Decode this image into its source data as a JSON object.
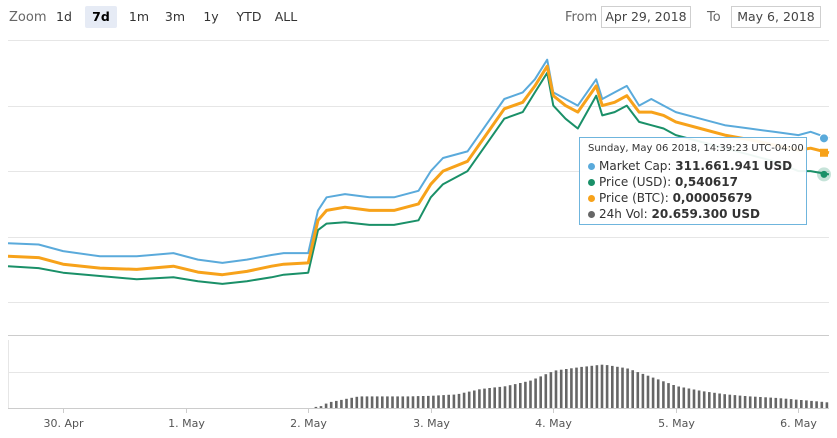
{
  "toolbar": {
    "zoom_label": "Zoom",
    "zoom_buttons": [
      "1d",
      "7d",
      "1m",
      "3m",
      "1y",
      "YTD",
      "ALL"
    ],
    "active_zoom": "7d",
    "from_label": "From",
    "from_value": "Apr 29, 2018",
    "to_label": "To",
    "to_value": "May 6, 2018"
  },
  "tooltip": {
    "header": "Sunday, May 06 2018, 14:39:23 UTC-04:00",
    "rows": [
      {
        "label": "Market Cap:",
        "value": "311.661.941 USD",
        "color": "#5aaadb"
      },
      {
        "label": "Price (USD):",
        "value": "0,540617",
        "color": "#1a9068"
      },
      {
        "label": "Price (BTC):",
        "value": "0,00005679",
        "color": "#f7a21a"
      },
      {
        "label": "24h Vol:",
        "value": "20.659.300 USD",
        "color": "#666666"
      }
    ]
  },
  "chart_data": {
    "type": "line",
    "x_axis": {
      "tick_labels": [
        "30. Apr",
        "1. May",
        "2. May",
        "3. May",
        "4. May",
        "5. May",
        "6. May"
      ],
      "range_days": [
        29.55,
        36.25
      ]
    },
    "grid": true,
    "series": [
      {
        "name": "Market Cap",
        "color": "#5aaadb",
        "unit": "USD",
        "x": [
          29.55,
          29.8,
          30.0,
          30.3,
          30.6,
          30.9,
          31.1,
          31.3,
          31.5,
          31.7,
          31.8,
          32.0,
          32.08,
          32.15,
          32.3,
          32.5,
          32.7,
          32.9,
          33.0,
          33.1,
          33.3,
          33.45,
          33.6,
          33.75,
          33.85,
          33.95,
          34.0,
          34.1,
          34.2,
          34.35,
          34.4,
          34.5,
          34.6,
          34.7,
          34.8,
          34.9,
          35.0,
          35.2,
          35.4,
          35.6,
          35.8,
          36.0,
          36.1,
          36.25
        ],
        "y": [
          0.49,
          0.488,
          0.478,
          0.47,
          0.47,
          0.475,
          0.465,
          0.46,
          0.465,
          0.472,
          0.475,
          0.475,
          0.54,
          0.56,
          0.565,
          0.56,
          0.56,
          0.57,
          0.6,
          0.62,
          0.63,
          0.67,
          0.71,
          0.72,
          0.74,
          0.77,
          0.72,
          0.71,
          0.7,
          0.74,
          0.71,
          0.72,
          0.73,
          0.7,
          0.71,
          0.7,
          0.69,
          0.68,
          0.67,
          0.665,
          0.66,
          0.655,
          0.66,
          0.65
        ]
      },
      {
        "name": "Price (USD)",
        "color": "#1a9068",
        "unit": "USD",
        "x": [
          29.55,
          29.8,
          30.0,
          30.3,
          30.6,
          30.9,
          31.1,
          31.3,
          31.5,
          31.7,
          31.8,
          32.0,
          32.08,
          32.15,
          32.3,
          32.5,
          32.7,
          32.9,
          33.0,
          33.1,
          33.3,
          33.45,
          33.6,
          33.75,
          33.85,
          33.95,
          34.0,
          34.1,
          34.2,
          34.35,
          34.4,
          34.5,
          34.6,
          34.7,
          34.8,
          34.9,
          35.0,
          35.2,
          35.4,
          35.6,
          35.8,
          36.0,
          36.1,
          36.25
        ],
        "y": [
          0.455,
          0.452,
          0.445,
          0.44,
          0.435,
          0.438,
          0.432,
          0.428,
          0.432,
          0.438,
          0.442,
          0.445,
          0.51,
          0.52,
          0.522,
          0.518,
          0.518,
          0.525,
          0.56,
          0.58,
          0.6,
          0.64,
          0.68,
          0.69,
          0.72,
          0.75,
          0.7,
          0.68,
          0.665,
          0.715,
          0.685,
          0.69,
          0.7,
          0.675,
          0.67,
          0.665,
          0.655,
          0.645,
          0.635,
          0.625,
          0.615,
          0.6,
          0.6,
          0.595
        ]
      },
      {
        "name": "Price (BTC)",
        "color": "#f7a21a",
        "unit": "BTC",
        "x": [
          29.55,
          29.8,
          30.0,
          30.3,
          30.6,
          30.9,
          31.1,
          31.3,
          31.5,
          31.7,
          31.8,
          32.0,
          32.08,
          32.15,
          32.3,
          32.5,
          32.7,
          32.9,
          33.0,
          33.1,
          33.3,
          33.45,
          33.6,
          33.75,
          33.85,
          33.95,
          34.0,
          34.1,
          34.2,
          34.35,
          34.4,
          34.5,
          34.6,
          34.7,
          34.8,
          34.9,
          35.0,
          35.2,
          35.4,
          35.6,
          35.8,
          36.0,
          36.1,
          36.25
        ],
        "y": [
          0.47,
          0.468,
          0.458,
          0.452,
          0.45,
          0.455,
          0.446,
          0.442,
          0.447,
          0.455,
          0.458,
          0.46,
          0.525,
          0.54,
          0.545,
          0.54,
          0.54,
          0.55,
          0.58,
          0.6,
          0.615,
          0.655,
          0.695,
          0.705,
          0.73,
          0.76,
          0.715,
          0.7,
          0.69,
          0.73,
          0.7,
          0.705,
          0.715,
          0.69,
          0.69,
          0.685,
          0.675,
          0.665,
          0.655,
          0.648,
          0.64,
          0.632,
          0.635,
          0.628
        ]
      }
    ],
    "volume": {
      "name": "24h Vol",
      "color": "#666666",
      "x": [
        29.55,
        30.0,
        30.5,
        31.0,
        31.5,
        32.0,
        32.1,
        32.15,
        32.4,
        32.8,
        33.0,
        33.2,
        33.4,
        33.6,
        33.8,
        34.0,
        34.2,
        34.4,
        34.6,
        34.8,
        35.0,
        35.2,
        35.4,
        35.6,
        35.8,
        36.0,
        36.25
      ],
      "y": [
        0,
        0,
        0,
        0,
        0,
        0,
        3,
        8,
        17,
        17,
        18,
        20,
        28,
        32,
        40,
        55,
        60,
        64,
        58,
        45,
        32,
        25,
        20,
        17,
        15,
        12,
        8
      ]
    }
  }
}
